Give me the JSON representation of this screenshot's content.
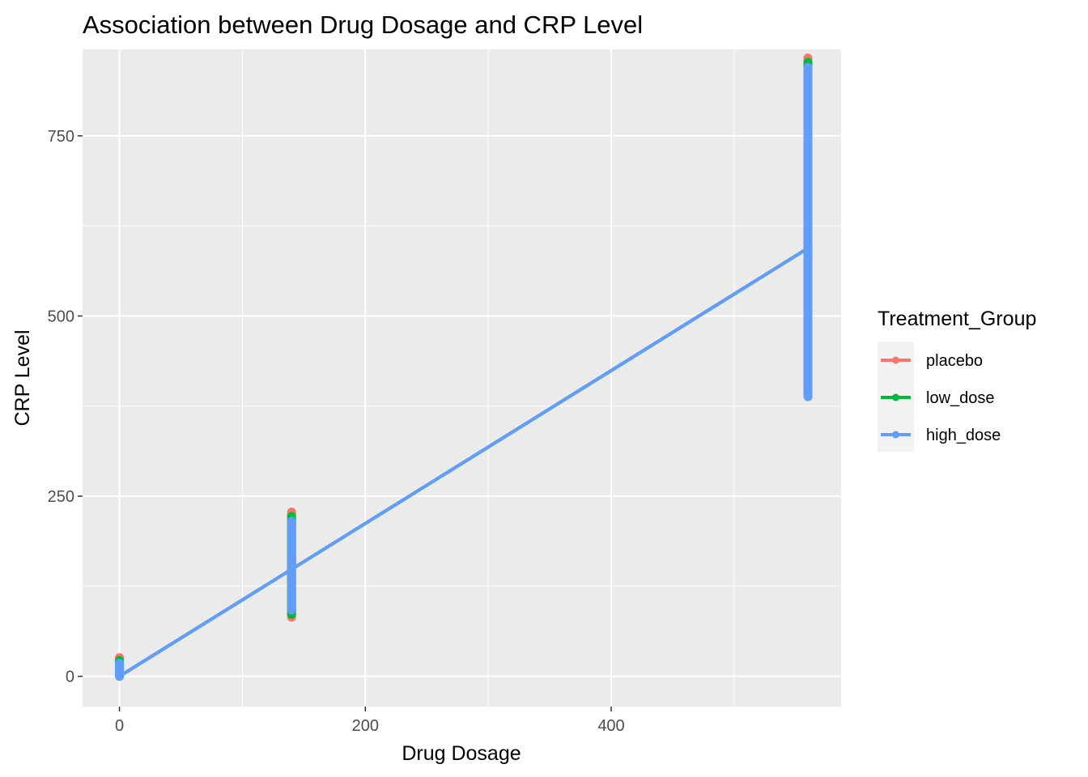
{
  "colors": {
    "panel_bg": "#EBEBEB",
    "grid": "#FFFFFF",
    "placebo": "#F8766D",
    "low_dose": "#00BA38",
    "high_dose": "#619CFF",
    "tick_text": "#4D4D4D"
  },
  "chart_data": {
    "type": "scatter",
    "title": "Association between Drug Dosage and CRP Level",
    "xlabel": "Drug Dosage",
    "ylabel": "CRP Level",
    "xlim": [
      -30,
      587
    ],
    "ylim": [
      -42,
      870
    ],
    "x_ticks": [
      0,
      200,
      400
    ],
    "x_tick_labels": [
      "0",
      "200",
      "400"
    ],
    "x_minor": [
      100,
      300,
      500
    ],
    "y_ticks": [
      0,
      250,
      500,
      750
    ],
    "y_tick_labels": [
      "0",
      "250",
      "500",
      "750"
    ],
    "y_minor": [
      125,
      375,
      625
    ],
    "grid": true,
    "legend": {
      "title": "Treatment_Group",
      "position": "right",
      "entries": [
        "placebo",
        "low_dose",
        "high_dose"
      ]
    },
    "series": [
      {
        "name": "placebo",
        "color": "#F8766D",
        "points": [
          {
            "x": 0,
            "ymin": 0,
            "ymax": 26
          },
          {
            "x": 140,
            "ymin": 82,
            "ymax": 228
          },
          {
            "x": 560,
            "ymin": 390,
            "ymax": 858
          }
        ]
      },
      {
        "name": "low_dose",
        "color": "#00BA38",
        "points": [
          {
            "x": 0,
            "ymin": 0,
            "ymax": 22
          },
          {
            "x": 140,
            "ymin": 86,
            "ymax": 222
          },
          {
            "x": 560,
            "ymin": 395,
            "ymax": 852
          }
        ]
      },
      {
        "name": "high_dose",
        "color": "#619CFF",
        "points": [
          {
            "x": 0,
            "ymin": 0,
            "ymax": 18
          },
          {
            "x": 140,
            "ymin": 92,
            "ymax": 215
          },
          {
            "x": 560,
            "ymin": 388,
            "ymax": 845
          }
        ]
      }
    ],
    "trend_lines": [
      {
        "series": "placebo",
        "x": [
          0,
          560
        ],
        "y": [
          0,
          594
        ]
      },
      {
        "series": "low_dose",
        "x": [
          0,
          560
        ],
        "y": [
          0,
          594
        ]
      },
      {
        "series": "high_dose",
        "x": [
          0,
          560
        ],
        "y": [
          0,
          594
        ]
      }
    ]
  }
}
